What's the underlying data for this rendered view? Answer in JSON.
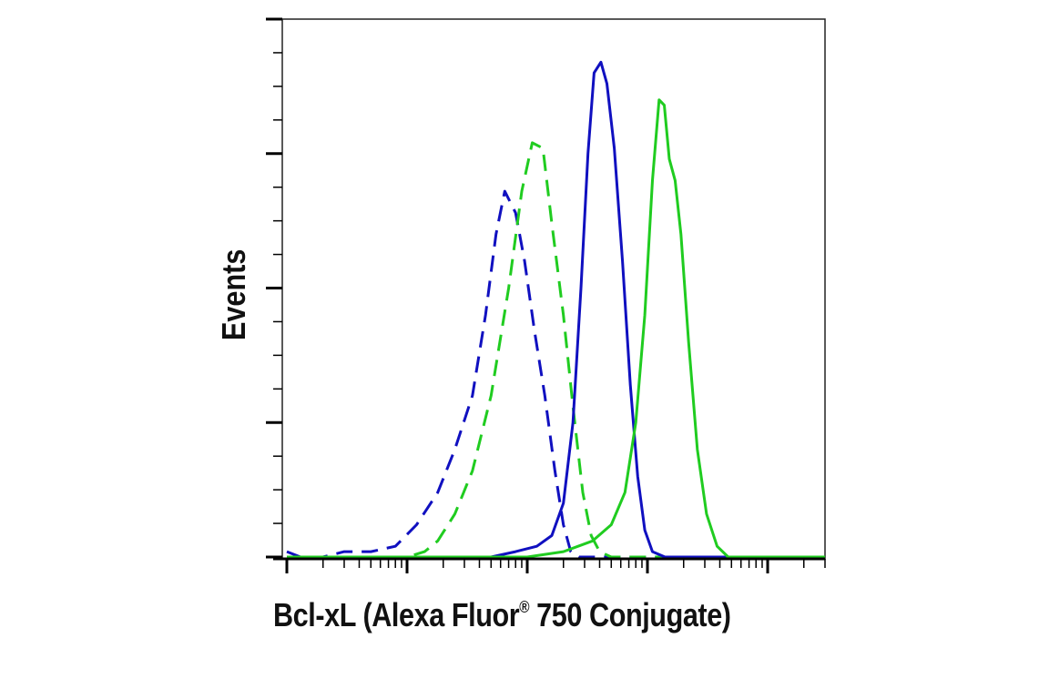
{
  "chart_data": {
    "type": "line",
    "xlabel": "Bcl-xL (Alexa Fluor",
    "xlabel_mark": "®",
    "xlabel_suffix": " 750 Conjugate)",
    "ylabel": "Events",
    "x_scale": "log",
    "xlim": [
      1,
      30000
    ],
    "ylim": [
      0,
      1.0
    ],
    "grid": false,
    "tick_labels_shown": false,
    "series": [
      {
        "color": "#1010c0",
        "dash": "dashed",
        "points": [
          [
            1,
            0.01
          ],
          [
            1.3,
            0.0
          ],
          [
            2,
            0.0
          ],
          [
            3,
            0.01
          ],
          [
            5,
            0.01
          ],
          [
            8,
            0.02
          ],
          [
            12,
            0.06
          ],
          [
            18,
            0.12
          ],
          [
            25,
            0.2
          ],
          [
            35,
            0.3
          ],
          [
            45,
            0.45
          ],
          [
            55,
            0.6
          ],
          [
            65,
            0.68
          ],
          [
            80,
            0.64
          ],
          [
            95,
            0.55
          ],
          [
            115,
            0.42
          ],
          [
            140,
            0.3
          ],
          [
            170,
            0.16
          ],
          [
            200,
            0.06
          ],
          [
            230,
            0.01
          ],
          [
            270,
            0.0
          ],
          [
            400,
            0.0
          ],
          [
            1000,
            0.0
          ],
          [
            30000,
            0.0
          ]
        ]
      },
      {
        "color": "#20cc20",
        "dash": "dashed",
        "points": [
          [
            1,
            0.0
          ],
          [
            10,
            0.0
          ],
          [
            14,
            0.01
          ],
          [
            18,
            0.03
          ],
          [
            25,
            0.08
          ],
          [
            35,
            0.16
          ],
          [
            50,
            0.3
          ],
          [
            70,
            0.5
          ],
          [
            90,
            0.68
          ],
          [
            110,
            0.77
          ],
          [
            135,
            0.76
          ],
          [
            160,
            0.62
          ],
          [
            200,
            0.45
          ],
          [
            240,
            0.28
          ],
          [
            290,
            0.12
          ],
          [
            340,
            0.04
          ],
          [
            400,
            0.01
          ],
          [
            500,
            0.0
          ],
          [
            1000,
            0.0
          ],
          [
            30000,
            0.0
          ]
        ]
      },
      {
        "color": "#1010c0",
        "dash": "solid",
        "points": [
          [
            1,
            0.0
          ],
          [
            50,
            0.0
          ],
          [
            80,
            0.01
          ],
          [
            120,
            0.02
          ],
          [
            160,
            0.04
          ],
          [
            200,
            0.1
          ],
          [
            240,
            0.25
          ],
          [
            280,
            0.5
          ],
          [
            320,
            0.75
          ],
          [
            360,
            0.9
          ],
          [
            410,
            0.92
          ],
          [
            460,
            0.88
          ],
          [
            530,
            0.76
          ],
          [
            620,
            0.55
          ],
          [
            720,
            0.32
          ],
          [
            830,
            0.15
          ],
          [
            950,
            0.05
          ],
          [
            1100,
            0.01
          ],
          [
            1400,
            0.0
          ],
          [
            30000,
            0.0
          ]
        ]
      },
      {
        "color": "#20cc20",
        "dash": "solid",
        "points": [
          [
            1,
            0.0
          ],
          [
            100,
            0.0
          ],
          [
            200,
            0.01
          ],
          [
            350,
            0.03
          ],
          [
            500,
            0.06
          ],
          [
            650,
            0.12
          ],
          [
            800,
            0.25
          ],
          [
            950,
            0.45
          ],
          [
            1100,
            0.7
          ],
          [
            1250,
            0.85
          ],
          [
            1380,
            0.84
          ],
          [
            1520,
            0.74
          ],
          [
            1700,
            0.7
          ],
          [
            1900,
            0.6
          ],
          [
            2200,
            0.4
          ],
          [
            2600,
            0.2
          ],
          [
            3100,
            0.08
          ],
          [
            3800,
            0.02
          ],
          [
            4700,
            0.0
          ],
          [
            30000,
            0.0
          ]
        ]
      }
    ]
  }
}
